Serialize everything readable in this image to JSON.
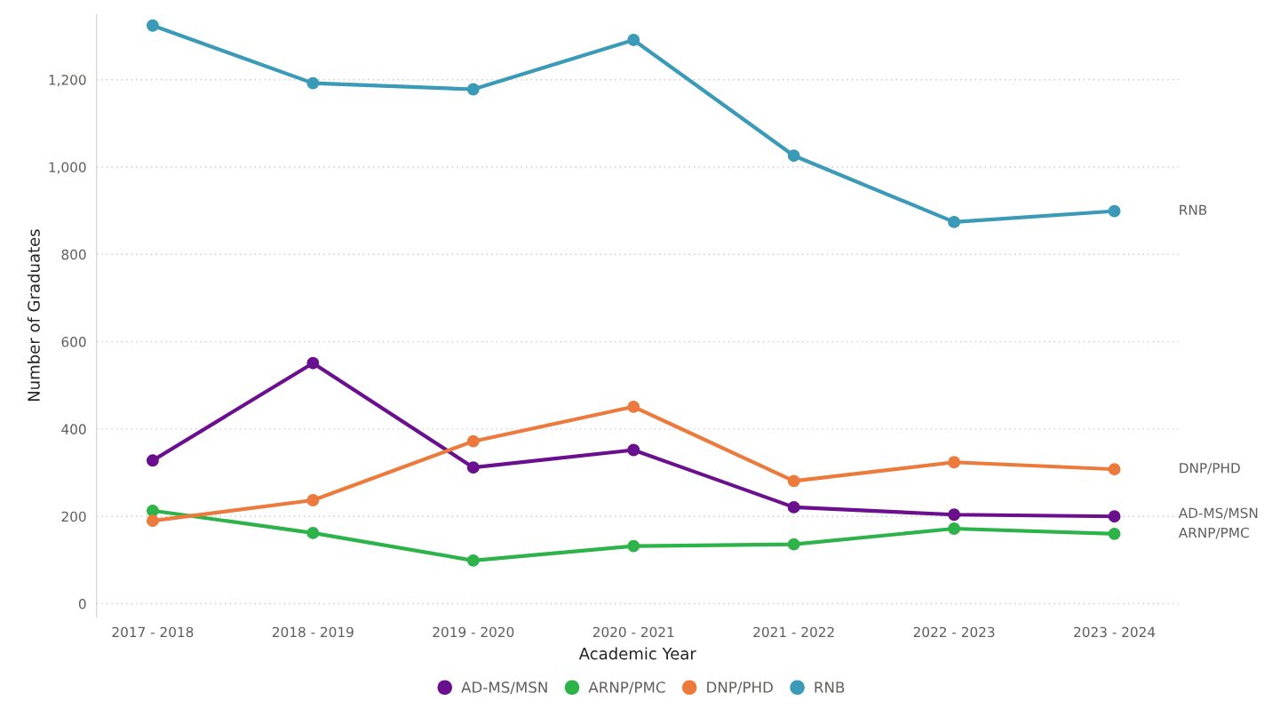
{
  "chart_data": {
    "type": "line",
    "xlabel": "Academic Year",
    "ylabel": "Number of Graduates",
    "categories": [
      "2017 - 2018",
      "2018 - 2019",
      "2019 - 2020",
      "2020 - 2021",
      "2021 - 2022",
      "2022 - 2023",
      "2023 - 2024"
    ],
    "series": [
      {
        "name": "AD-MS/MSN",
        "color": "#6a0f8e",
        "values": [
          328,
          551,
          312,
          352,
          221,
          204,
          200
        ]
      },
      {
        "name": "ARNP/PMC",
        "color": "#2db34a",
        "values": [
          213,
          162,
          99,
          132,
          136,
          172,
          160
        ]
      },
      {
        "name": "DNP/PHD",
        "color": "#ec7a3c",
        "values": [
          190,
          237,
          372,
          451,
          281,
          324,
          308
        ]
      },
      {
        "name": "RNB",
        "color": "#3a9ab8",
        "values": [
          1324,
          1192,
          1178,
          1291,
          1026,
          874,
          899
        ]
      }
    ],
    "ylim": [
      -30,
      1350
    ],
    "yticks": [
      0,
      {
        "value": 200,
        "label": "200"
      },
      {
        "value": 400,
        "label": "400"
      },
      {
        "value": 600,
        "label": "600"
      },
      {
        "value": 800,
        "label": "800"
      },
      {
        "value": 1000,
        "label": "1,000"
      },
      {
        "value": 1200,
        "label": "1,200"
      }
    ],
    "grid": "y",
    "legend": "bottom",
    "marker": "circle",
    "line_style": "solid"
  }
}
